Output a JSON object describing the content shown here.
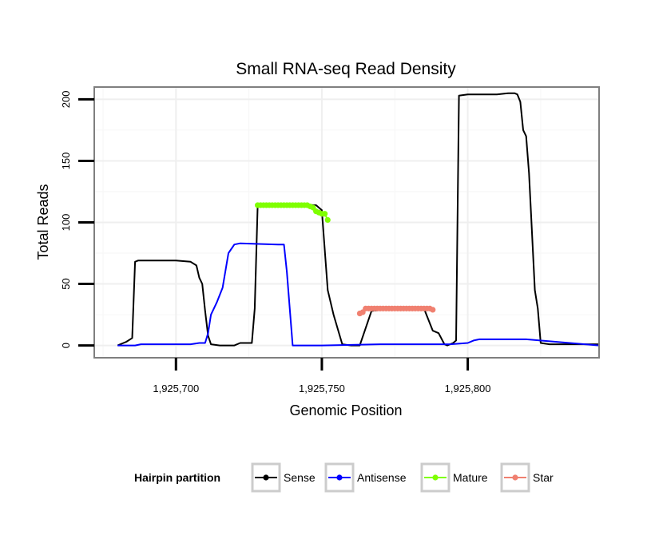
{
  "chart_data": {
    "type": "line",
    "title": "Small RNA-seq Read Density",
    "xlabel": "Genomic Position",
    "ylabel": "Total Reads",
    "xlim": [
      1925672,
      1925845
    ],
    "ylim": [
      -10,
      210
    ],
    "x_ticks": [
      1925700,
      1925750,
      1925800
    ],
    "x_tick_labels": [
      "1,925,700",
      "1,925,750",
      "1,925,800"
    ],
    "y_ticks": [
      0,
      50,
      100,
      150,
      200
    ],
    "y_tick_labels": [
      "0",
      "50",
      "100",
      "150",
      "200"
    ],
    "grid": true,
    "legend": {
      "title": "Hairpin partition",
      "placement": "bottom",
      "entries": [
        "Sense",
        "Antisense",
        "Mature",
        "Star"
      ]
    },
    "series": [
      {
        "name": "Sense",
        "color": "#000000",
        "points": true,
        "x": [
          1925680,
          1925683,
          1925685,
          1925686,
          1925687,
          1925690,
          1925695,
          1925700,
          1925705,
          1925707,
          1925708,
          1925709,
          1925710,
          1925711,
          1925712,
          1925715,
          1925720,
          1925722,
          1925724,
          1925726,
          1925727,
          1925728,
          1925740,
          1925748,
          1925750,
          1925752,
          1925754,
          1925757,
          1925760,
          1925763,
          1925767,
          1925775,
          1925780,
          1925785,
          1925788,
          1925790,
          1925792,
          1925793,
          1925795,
          1925796,
          1925797,
          1925800,
          1925810,
          1925814,
          1925816,
          1925817,
          1925818,
          1925819,
          1925820,
          1925821,
          1925823,
          1925824,
          1925825,
          1925828,
          1925845
        ],
        "y": [
          0,
          3,
          6,
          68,
          69,
          69,
          69,
          69,
          68,
          65,
          55,
          50,
          28,
          8,
          1,
          0,
          0,
          2,
          2,
          2,
          30,
          114,
          114,
          114,
          110,
          45,
          25,
          1,
          0,
          0,
          28,
          30,
          30,
          30,
          12,
          10,
          1,
          0,
          2,
          4,
          203,
          204,
          204,
          205,
          205,
          204,
          198,
          175,
          170,
          140,
          45,
          30,
          2,
          1,
          1
        ]
      },
      {
        "name": "Antisense",
        "color": "#0000ff",
        "points": true,
        "x": [
          1925680,
          1925686,
          1925688,
          1925705,
          1925708,
          1925710,
          1925711,
          1925712,
          1925714,
          1925716,
          1925718,
          1925720,
          1925722,
          1925735,
          1925737,
          1925738,
          1925740,
          1925750,
          1925770,
          1925780,
          1925790,
          1925794,
          1925800,
          1925802,
          1925804,
          1925806,
          1925820,
          1925845
        ],
        "y": [
          0,
          0,
          1,
          1,
          2,
          2,
          10,
          25,
          35,
          47,
          75,
          82,
          83,
          82,
          82,
          60,
          0,
          0,
          1,
          1,
          1,
          1,
          2,
          4,
          5,
          5,
          5,
          0
        ]
      },
      {
        "name": "Mature",
        "color": "#7fff00",
        "points": true,
        "x": [
          1925728,
          1925729,
          1925730,
          1925731,
          1925732,
          1925733,
          1925734,
          1925735,
          1925736,
          1925737,
          1925738,
          1925739,
          1925740,
          1925741,
          1925742,
          1925743,
          1925744,
          1925745,
          1925746,
          1925747,
          1925748,
          1925749,
          1925750,
          1925751,
          1925752
        ],
        "y": [
          114,
          114,
          114,
          114,
          114,
          114,
          114,
          114,
          114,
          114,
          114,
          114,
          114,
          114,
          114,
          114,
          114,
          114,
          113,
          112,
          109,
          108,
          107,
          107,
          102
        ]
      },
      {
        "name": "Star",
        "color": "#f08070",
        "points": true,
        "x": [
          1925763,
          1925764,
          1925765,
          1925766,
          1925767,
          1925768,
          1925769,
          1925770,
          1925771,
          1925772,
          1925773,
          1925774,
          1925775,
          1925776,
          1925777,
          1925778,
          1925779,
          1925780,
          1925781,
          1925782,
          1925783,
          1925784,
          1925785,
          1925786,
          1925787,
          1925788
        ],
        "y": [
          26,
          27,
          30,
          30,
          30,
          30,
          30,
          30,
          30,
          30,
          30,
          30,
          30,
          30,
          30,
          30,
          30,
          30,
          30,
          30,
          30,
          30,
          30,
          30,
          30,
          29
        ]
      }
    ]
  }
}
